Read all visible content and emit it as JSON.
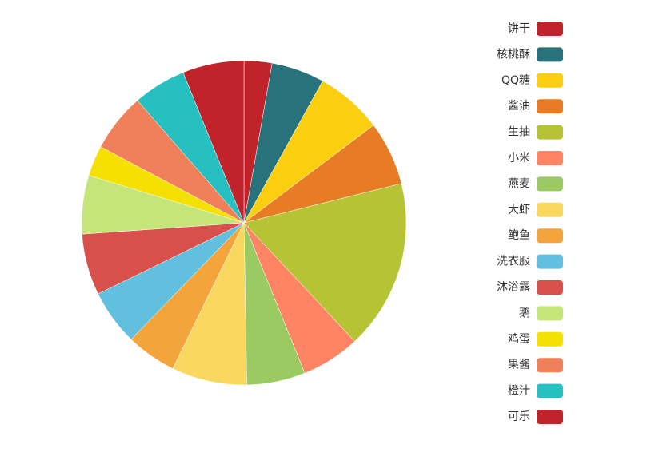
{
  "chart_data": {
    "type": "pie",
    "categories": [
      "饼干",
      "核桃酥",
      "QQ糖",
      "酱油",
      "生抽",
      "小米",
      "燕麦",
      "大虾",
      "鲍鱼",
      "洗衣服",
      "沐浴露",
      "鹅",
      "鸡蛋",
      "果酱",
      "橙汁",
      "可乐"
    ],
    "values": [
      10,
      19,
      24,
      23,
      61,
      21,
      21,
      27,
      18,
      20,
      22,
      21,
      11,
      21,
      19,
      22
    ],
    "colors": [
      "#c1232b",
      "#27727b",
      "#fcce10",
      "#e87c25",
      "#b5c334",
      "#fe8463",
      "#9bca63",
      "#fad860",
      "#f3a43b",
      "#60c0dd",
      "#d7504b",
      "#c6e579",
      "#f4e001",
      "#f0805a",
      "#26c0c0",
      "#c1232b"
    ],
    "legend": "right"
  }
}
